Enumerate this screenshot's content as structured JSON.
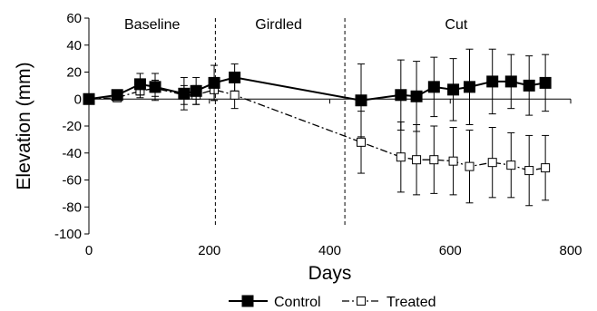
{
  "chart_data": {
    "type": "line",
    "xlabel": "Days",
    "ylabel": "Elevation (mm)",
    "xlim": [
      0,
      800
    ],
    "ylim": [
      -100,
      60
    ],
    "x_ticks": [
      "0",
      "200",
      "400",
      "600",
      "800"
    ],
    "y_ticks": [
      "60",
      "40",
      "20",
      "0",
      "-20",
      "-40",
      "-60",
      "-80",
      "-100"
    ],
    "grid": false,
    "legend_position": "bottom-center",
    "phases": [
      {
        "label": "Baseline",
        "x_center": 105
      },
      {
        "label": "Girdled",
        "x_center": 315
      },
      {
        "label": "Cut",
        "x_center": 610
      }
    ],
    "phase_boundaries": [
      210,
      425
    ],
    "series": [
      {
        "name": "Control",
        "marker": "filled-square",
        "line_style": "solid",
        "x": [
          0,
          47,
          85,
          110,
          158,
          178,
          208,
          242,
          452,
          518,
          544,
          573,
          605,
          632,
          670,
          701,
          731,
          758
        ],
        "y": [
          0,
          3,
          11,
          9,
          4,
          6,
          12,
          16,
          -1,
          3,
          2,
          9,
          7,
          9,
          13,
          13,
          10,
          12
        ],
        "err": [
          0,
          3,
          8,
          10,
          12,
          10,
          13,
          10,
          27,
          26,
          26,
          22,
          23,
          28,
          24,
          20,
          22,
          21
        ]
      },
      {
        "name": "Treated",
        "marker": "open-square",
        "line_style": "dash-dot",
        "x": [
          0,
          47,
          85,
          110,
          158,
          178,
          208,
          242,
          452,
          518,
          544,
          573,
          605,
          632,
          670,
          701,
          731,
          758
        ],
        "y": [
          0,
          1,
          6,
          8,
          3,
          3,
          7,
          3,
          -32,
          -43,
          -45,
          -45,
          -46,
          -50,
          -47,
          -49,
          -53,
          -51
        ],
        "err": [
          0,
          2,
          5,
          6,
          7,
          7,
          8,
          10,
          23,
          26,
          26,
          25,
          25,
          27,
          26,
          24,
          26,
          24
        ]
      }
    ]
  }
}
